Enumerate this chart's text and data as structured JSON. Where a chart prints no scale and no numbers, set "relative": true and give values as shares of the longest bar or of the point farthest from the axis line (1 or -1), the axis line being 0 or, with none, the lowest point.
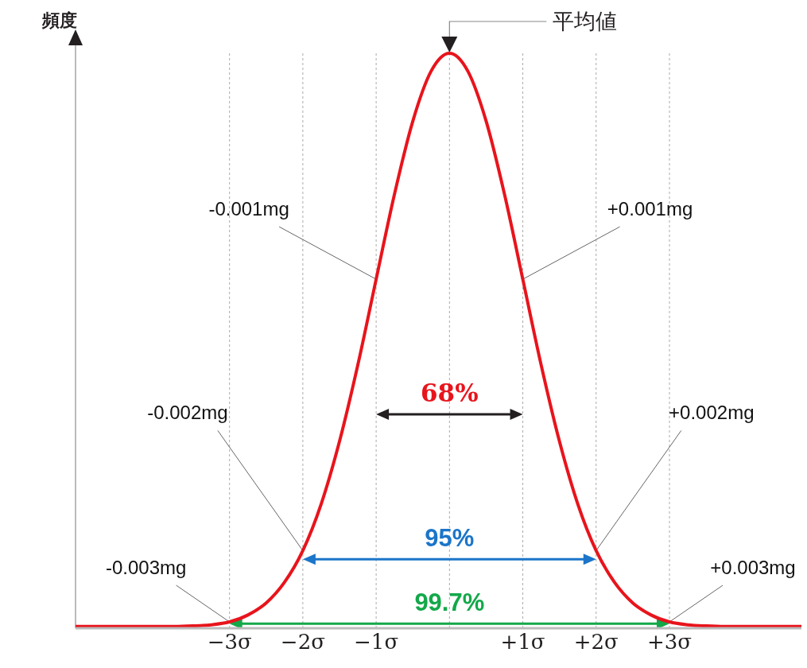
{
  "chart_data": {
    "type": "line",
    "relative": true,
    "ylabel": "頻度",
    "x": [
      -5.1,
      -5,
      -4.75,
      -4.5,
      -4.25,
      -4,
      -3.75,
      -3.5,
      -3.25,
      -3,
      -2.75,
      -2.5,
      -2.25,
      -2,
      -1.75,
      -1.5,
      -1.25,
      -1,
      -0.75,
      -0.5,
      -0.25,
      0,
      0.25,
      0.5,
      0.75,
      1,
      1.25,
      1.5,
      1.75,
      2,
      2.25,
      2.5,
      2.75,
      3,
      3.25,
      3.5,
      3.75,
      4,
      4.25,
      4.5,
      4.75,
      4.8
    ],
    "series": [
      {
        "color": "#e8141c",
        "values": [
          0.003,
          0.003,
          0.003,
          0.003,
          0.003,
          0.003,
          0.003,
          0.004,
          0.006,
          0.011,
          0.023,
          0.044,
          0.08,
          0.135,
          0.216,
          0.325,
          0.458,
          0.607,
          0.755,
          0.882,
          0.969,
          1,
          0.969,
          0.882,
          0.755,
          0.607,
          0.458,
          0.325,
          0.216,
          0.135,
          0.08,
          0.044,
          0.023,
          0.011,
          0.006,
          0.004,
          0.003,
          0.003,
          0.003,
          0.003,
          0.003,
          0.003
        ]
      }
    ],
    "xlim": [
      -5.1,
      4.8
    ],
    "xticks": [
      {
        "value": -3,
        "label": "−3σ"
      },
      {
        "value": -2,
        "label": "−2σ"
      },
      {
        "value": -1,
        "label": "−1σ"
      },
      {
        "value": 0,
        "label": null
      },
      {
        "value": 1,
        "label": "+1σ"
      },
      {
        "value": 2,
        "label": "+2σ"
      },
      {
        "value": 3,
        "label": "+3σ"
      }
    ],
    "grid": "x",
    "marker": "none",
    "line_style": "solid",
    "annotations": [
      "平均値",
      {
        "text": "-0.001mg",
        "x": -1,
        "y": 0.607
      },
      {
        "text": "+0.001mg",
        "x": 1,
        "y": 0.607
      },
      {
        "text": "-0.002mg",
        "x": -2,
        "y": 0.135
      },
      {
        "text": "+0.002mg",
        "x": 2,
        "y": 0.135
      },
      {
        "text": "-0.003mg",
        "x": -3,
        "y": 0.011
      },
      {
        "text": "+0.003mg",
        "x": 3,
        "y": 0.011
      },
      "68%",
      "95%",
      "99.7%"
    ]
  }
}
